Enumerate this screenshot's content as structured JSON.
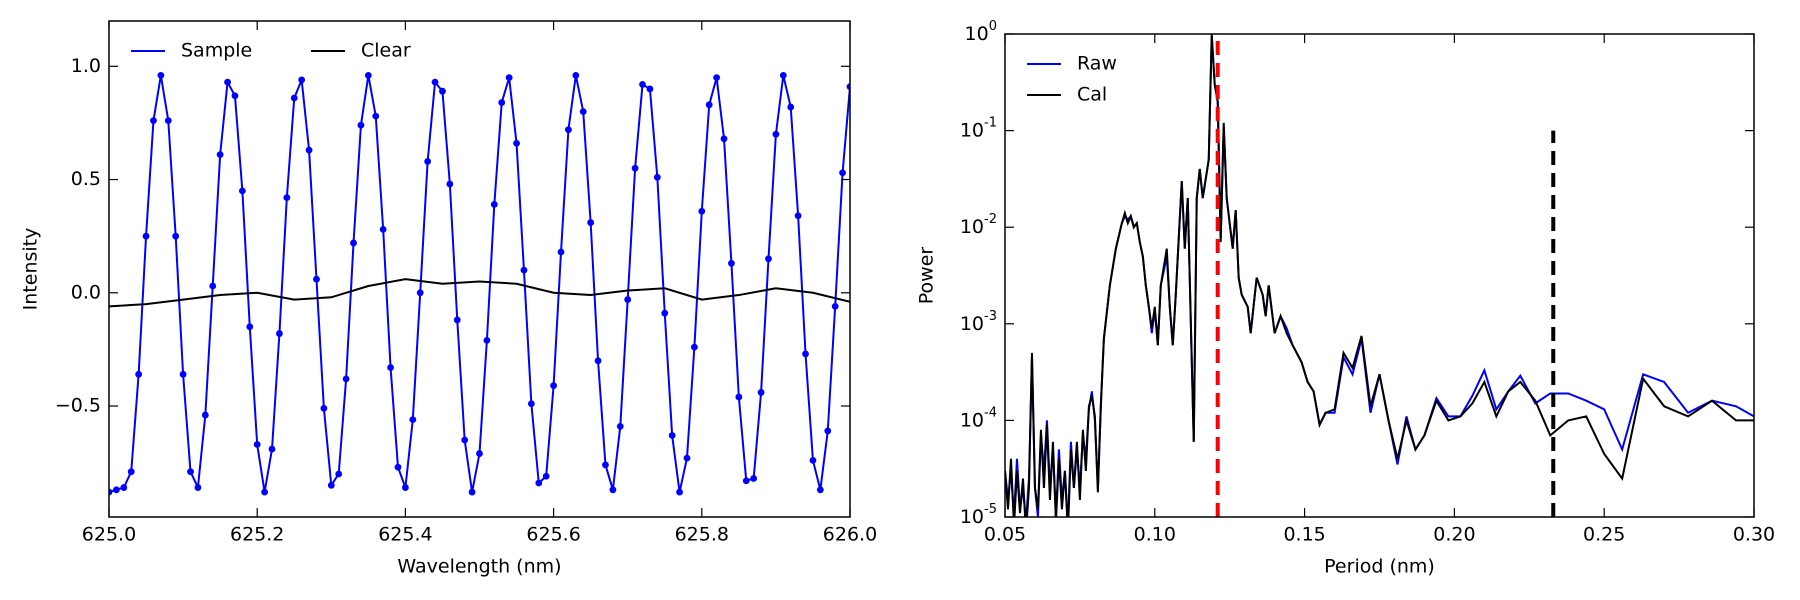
{
  "chart_data": [
    {
      "type": "line",
      "xlabel": "Wavelength (nm)",
      "ylabel": "Intensity",
      "xlim": [
        625.0,
        626.0
      ],
      "ylim": [
        -0.99,
        1.2
      ],
      "xticks": [
        {
          "value": 625.0,
          "label": "625.0"
        },
        {
          "value": 625.2,
          "label": "625.2"
        },
        {
          "value": 625.4,
          "label": "625.4"
        },
        {
          "value": 625.6,
          "label": "625.6"
        },
        {
          "value": 625.8,
          "label": "625.8"
        },
        {
          "value": 626.0,
          "label": "626.0"
        }
      ],
      "yticks": [
        {
          "value": -0.5,
          "label": "−0.5"
        },
        {
          "value": 0,
          "label": "0.0"
        },
        0.5,
        {
          "value": 1,
          "label": "1.0"
        }
      ],
      "legend": "upper left",
      "legend_columns": 2,
      "series": [
        {
          "name": "Sample",
          "color": "#0000ff",
          "marker": true,
          "x": [
            625.0,
            625.01,
            625.02,
            625.03,
            625.04,
            625.05,
            625.06,
            625.07,
            625.08,
            625.09,
            625.1,
            625.11,
            625.12,
            625.13,
            625.14,
            625.15,
            625.16,
            625.17,
            625.18,
            625.19,
            625.2,
            625.21,
            625.22,
            625.23,
            625.24,
            625.25,
            625.26,
            625.27,
            625.28,
            625.29,
            625.3,
            625.31,
            625.32,
            625.33,
            625.34,
            625.35,
            625.36,
            625.37,
            625.38,
            625.39,
            625.4,
            625.41,
            625.42,
            625.43,
            625.44,
            625.45,
            625.46,
            625.47,
            625.48,
            625.49,
            625.5,
            625.51,
            625.52,
            625.53,
            625.54,
            625.55,
            625.56,
            625.57,
            625.58,
            625.59,
            625.6,
            625.61,
            625.62,
            625.63,
            625.64,
            625.65,
            625.66,
            625.67,
            625.68,
            625.69,
            625.7,
            625.71,
            625.72,
            625.73,
            625.74,
            625.75,
            625.76,
            625.77,
            625.78,
            625.79,
            625.8,
            625.81,
            625.82,
            625.83,
            625.84,
            625.85,
            625.86,
            625.87,
            625.88,
            625.89,
            625.9,
            625.91,
            625.92,
            625.93,
            625.94,
            625.95,
            625.96,
            625.97,
            625.98,
            625.99,
            626.0
          ],
          "values": [
            -0.88,
            -0.87,
            -0.86,
            -0.79,
            -0.36,
            0.25,
            0.76,
            0.96,
            0.76,
            0.25,
            -0.36,
            -0.79,
            -0.86,
            -0.54,
            0.03,
            0.61,
            0.93,
            0.87,
            0.45,
            -0.15,
            -0.67,
            -0.88,
            -0.69,
            -0.18,
            0.42,
            0.86,
            0.94,
            0.63,
            0.06,
            -0.51,
            -0.85,
            -0.8,
            -0.38,
            0.22,
            0.74,
            0.96,
            0.78,
            0.28,
            -0.33,
            -0.77,
            -0.86,
            -0.56,
            0.0,
            0.58,
            0.93,
            0.89,
            0.48,
            -0.12,
            -0.65,
            -0.88,
            -0.71,
            -0.21,
            0.39,
            0.84,
            0.95,
            0.66,
            0.1,
            -0.49,
            -0.84,
            -0.81,
            -0.41,
            0.18,
            0.72,
            0.96,
            0.8,
            0.31,
            -0.3,
            -0.76,
            -0.87,
            -0.59,
            -0.03,
            0.55,
            0.92,
            0.9,
            0.51,
            -0.09,
            -0.63,
            -0.88,
            -0.73,
            -0.24,
            0.36,
            0.83,
            0.95,
            0.68,
            0.13,
            -0.46,
            -0.83,
            -0.82,
            -0.44,
            0.15,
            0.7,
            0.96,
            0.82,
            0.34,
            -0.27,
            -0.74,
            -0.87,
            -0.61,
            -0.06,
            0.53,
            0.91
          ]
        },
        {
          "name": "Clear",
          "color": "#000000",
          "x": [
            625.0,
            625.05,
            625.1,
            625.15,
            625.2,
            625.25,
            625.3,
            625.35,
            625.4,
            625.45,
            625.5,
            625.55,
            625.6,
            625.65,
            625.7,
            625.75,
            625.8,
            625.85,
            625.9,
            625.95,
            626.0
          ],
          "values": [
            -0.06,
            -0.05,
            -0.03,
            -0.01,
            0.0,
            -0.03,
            -0.02,
            0.03,
            0.06,
            0.04,
            0.05,
            0.04,
            0.0,
            -0.01,
            0.01,
            0.02,
            -0.03,
            -0.01,
            0.02,
            0.0,
            -0.04
          ]
        }
      ]
    },
    {
      "type": "line",
      "log_y": true,
      "xlabel": "Period (nm)",
      "ylabel": "Power",
      "xlim": [
        0.05,
        0.3
      ],
      "ylim": [
        1e-05,
        1
      ],
      "xticks": [
        0.05,
        {
          "value": 0.1,
          "label": "0.10"
        },
        0.15,
        {
          "value": 0.2,
          "label": "0.20"
        },
        0.25,
        {
          "value": 0.3,
          "label": "0.30"
        }
      ],
      "yticks": [
        {
          "value": 1e-05,
          "label": "10",
          "exponent": "-5"
        },
        {
          "value": 0.0001,
          "label": "10",
          "exponent": "-4"
        },
        {
          "value": 0.001,
          "label": "10",
          "exponent": "-3"
        },
        {
          "value": 0.01,
          "label": "10",
          "exponent": "-2"
        },
        {
          "value": 0.1,
          "label": "10",
          "exponent": "-1"
        },
        {
          "value": 1,
          "label": "10",
          "exponent": "0"
        }
      ],
      "legend": "upper left",
      "legend_columns": 1,
      "vlines": [
        {
          "x": 0.121,
          "ymax": 1,
          "color": "#ff0000"
        },
        {
          "x": 0.233,
          "ymax": 0.1,
          "color": "#000000"
        }
      ],
      "series": [
        {
          "name": "Raw",
          "color": "#0000ff",
          "x": [
            0.05,
            0.051,
            0.052,
            0.053,
            0.054,
            0.055,
            0.056,
            0.057,
            0.058,
            0.059,
            0.06,
            0.061,
            0.062,
            0.063,
            0.064,
            0.065,
            0.066,
            0.067,
            0.068,
            0.069,
            0.07,
            0.071,
            0.072,
            0.073,
            0.074,
            0.075,
            0.076,
            0.077,
            0.078,
            0.079,
            0.08,
            0.081,
            0.082,
            0.083,
            0.085,
            0.087,
            0.089,
            0.09,
            0.091,
            0.092,
            0.093,
            0.094,
            0.095,
            0.096,
            0.097,
            0.098,
            0.099,
            0.1,
            0.101,
            0.102,
            0.104,
            0.105,
            0.106,
            0.107,
            0.109,
            0.11,
            0.111,
            0.113,
            0.114,
            0.115,
            0.116,
            0.118,
            0.119,
            0.12,
            0.121,
            0.122,
            0.123,
            0.124,
            0.126,
            0.127,
            0.128,
            0.129,
            0.131,
            0.132,
            0.134,
            0.136,
            0.137,
            0.138,
            0.14,
            0.142,
            0.144,
            0.146,
            0.149,
            0.151,
            0.153,
            0.155,
            0.157,
            0.16,
            0.163,
            0.166,
            0.169,
            0.172,
            0.175,
            0.178,
            0.181,
            0.184,
            0.187,
            0.19,
            0.194,
            0.198,
            0.202,
            0.206,
            0.21,
            0.214,
            0.218,
            0.222,
            0.227,
            0.232,
            0.238,
            0.244,
            0.25,
            0.256,
            0.263,
            0.27,
            0.278,
            0.286,
            0.294,
            0.3
          ],
          "values": [
            3e-05,
            1.5e-05,
            3e-05,
            1e-05,
            4e-05,
            1.2e-05,
            2e-05,
            9e-06,
            2.5e-05,
            0.00045,
            2e-05,
            1e-05,
            7e-05,
            3e-05,
            0.0001,
            2e-05,
            5e-05,
            1e-05,
            5e-05,
            1.5e-05,
            3e-05,
            8e-06,
            6e-05,
            2e-05,
            5e-05,
            2e-05,
            7e-05,
            4e-05,
            0.00013,
            0.0002,
            0.0001,
            2e-05,
            0.00014,
            0.0007,
            0.0025,
            0.006,
            0.011,
            0.013,
            0.012,
            0.013,
            0.01,
            0.011,
            0.007,
            0.005,
            0.0025,
            0.0015,
            0.0008,
            0.0014,
            0.0006,
            0.0025,
            0.005,
            0.0015,
            0.0006,
            0.002,
            0.03,
            0.006,
            0.02,
            6e-05,
            0.02,
            0.04,
            0.02,
            0.05,
            0.95,
            0.3,
            0.2,
            0.008,
            0.11,
            0.02,
            0.006,
            0.015,
            0.003,
            0.002,
            0.0015,
            0.0008,
            0.003,
            0.002,
            0.0012,
            0.0025,
            0.0008,
            0.0012,
            0.0009,
            0.0006,
            0.0004,
            0.00025,
            0.0002,
            9e-05,
            0.00012,
            0.00012,
            0.00045,
            0.0003,
            0.0007,
            0.00012,
            0.0003,
            0.0001,
            3.5e-05,
            0.00011,
            5e-05,
            7e-05,
            0.00017,
            0.00011,
            0.00011,
            0.00018,
            0.00033,
            0.00013,
            0.0002,
            0.00029,
            0.00015,
            0.00019,
            0.00019,
            0.00016,
            0.00013,
            5e-05,
            0.0003,
            0.00025,
            0.00012,
            0.00016,
            0.00014,
            0.00011
          ]
        },
        {
          "name": "Cal",
          "color": "#000000",
          "x": [
            0.05,
            0.051,
            0.052,
            0.053,
            0.054,
            0.055,
            0.056,
            0.057,
            0.058,
            0.059,
            0.06,
            0.061,
            0.062,
            0.063,
            0.064,
            0.065,
            0.066,
            0.067,
            0.068,
            0.069,
            0.07,
            0.071,
            0.072,
            0.073,
            0.074,
            0.075,
            0.076,
            0.077,
            0.078,
            0.079,
            0.08,
            0.081,
            0.082,
            0.083,
            0.085,
            0.087,
            0.089,
            0.09,
            0.091,
            0.092,
            0.093,
            0.094,
            0.095,
            0.096,
            0.097,
            0.098,
            0.099,
            0.1,
            0.101,
            0.102,
            0.104,
            0.105,
            0.106,
            0.107,
            0.109,
            0.11,
            0.111,
            0.113,
            0.114,
            0.115,
            0.116,
            0.118,
            0.119,
            0.12,
            0.121,
            0.122,
            0.123,
            0.124,
            0.126,
            0.127,
            0.128,
            0.129,
            0.131,
            0.132,
            0.134,
            0.136,
            0.137,
            0.138,
            0.14,
            0.142,
            0.144,
            0.146,
            0.149,
            0.151,
            0.153,
            0.155,
            0.157,
            0.16,
            0.163,
            0.166,
            0.169,
            0.172,
            0.175,
            0.178,
            0.181,
            0.184,
            0.187,
            0.19,
            0.194,
            0.198,
            0.202,
            0.206,
            0.21,
            0.214,
            0.218,
            0.222,
            0.227,
            0.232,
            0.238,
            0.244,
            0.25,
            0.256,
            0.263,
            0.27,
            0.278,
            0.286,
            0.294,
            0.3
          ],
          "values": [
            3e-05,
            1.2e-05,
            4e-05,
            8e-06,
            3e-05,
            1.1e-05,
            2.5e-05,
            7e-06,
            2e-05,
            0.0005,
            2e-05,
            1.2e-05,
            8e-05,
            2e-05,
            9e-05,
            1.5e-05,
            6e-05,
            9e-06,
            4e-05,
            1.2e-05,
            3e-05,
            7e-06,
            5e-05,
            2e-05,
            6e-05,
            1.5e-05,
            8e-05,
            3e-05,
            0.00014,
            0.00018,
            0.00011,
            1.8e-05,
            0.00015,
            0.0007,
            0.0025,
            0.006,
            0.011,
            0.014,
            0.011,
            0.013,
            0.01,
            0.011,
            0.007,
            0.005,
            0.0025,
            0.0015,
            0.0009,
            0.0015,
            0.0006,
            0.0025,
            0.006,
            0.0015,
            0.0006,
            0.002,
            0.03,
            0.006,
            0.02,
            6e-05,
            0.02,
            0.04,
            0.02,
            0.05,
            1.0,
            0.3,
            0.2,
            0.007,
            0.12,
            0.02,
            0.006,
            0.015,
            0.003,
            0.002,
            0.0015,
            0.0008,
            0.003,
            0.002,
            0.0012,
            0.0025,
            0.0008,
            0.0012,
            0.0008,
            0.0006,
            0.0004,
            0.00025,
            0.0002,
            9e-05,
            0.00012,
            0.00013,
            0.0005,
            0.00035,
            0.00075,
            0.00014,
            0.0003,
            0.0001,
            4e-05,
            0.0001,
            5e-05,
            7e-05,
            0.00016,
            0.0001,
            0.00011,
            0.00015,
            0.00025,
            0.00011,
            0.0002,
            0.00025,
            0.00016,
            7e-05,
            0.0001,
            0.00011,
            4.5e-05,
            2.5e-05,
            0.00027,
            0.00014,
            0.00011,
            0.00016,
            0.0001,
            0.0001
          ]
        }
      ]
    }
  ]
}
